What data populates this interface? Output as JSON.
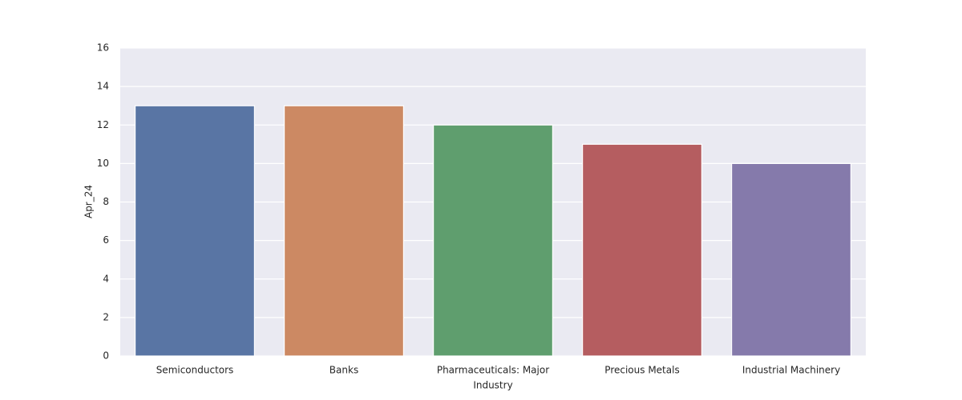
{
  "chart_data": {
    "type": "bar",
    "categories": [
      "Semiconductors",
      "Banks",
      "Pharmaceuticals: Major",
      "Precious Metals",
      "Industrial Machinery"
    ],
    "values": [
      13,
      13,
      12,
      11,
      10
    ],
    "colors": [
      "#5975a4",
      "#cc8963",
      "#5f9e6e",
      "#b55d60",
      "#857aab"
    ],
    "xlabel": "Industry",
    "ylabel": "Apr_24",
    "ylim": [
      0,
      16
    ],
    "yticks": [
      0,
      2,
      4,
      6,
      8,
      10,
      12,
      14,
      16
    ],
    "grid": true
  }
}
